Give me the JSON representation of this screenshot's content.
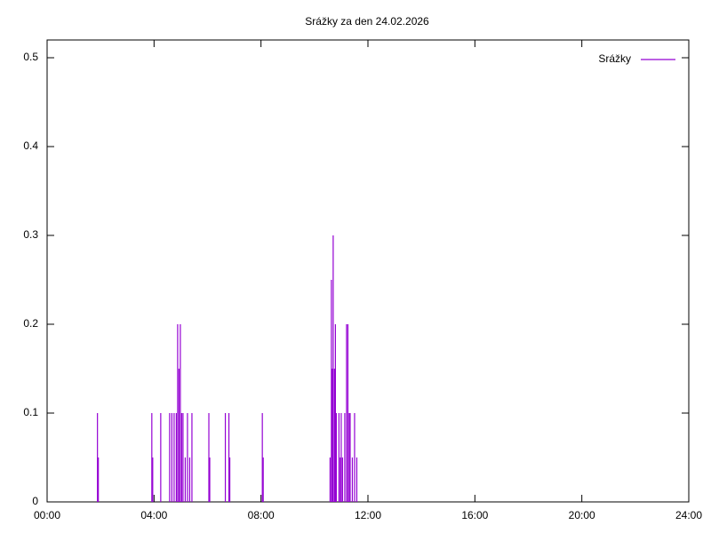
{
  "chart_data": {
    "type": "impulses",
    "title": "Srážky za den 24.02.2026",
    "x": [
      "01:53",
      "01:55",
      "03:55",
      "03:57",
      "04:15",
      "04:35",
      "04:40",
      "04:45",
      "04:50",
      "04:53",
      "04:56",
      "04:59",
      "05:02",
      "05:05",
      "05:10",
      "05:15",
      "05:20",
      "05:25",
      "06:03",
      "06:05",
      "06:40",
      "06:48",
      "06:50",
      "08:03",
      "08:05",
      "10:35",
      "10:38",
      "10:40",
      "10:42",
      "10:45",
      "10:47",
      "10:49",
      "10:55",
      "10:58",
      "11:00",
      "11:03",
      "11:08",
      "11:12",
      "11:15",
      "11:18",
      "11:20",
      "11:25",
      "11:30",
      "11:35"
    ],
    "series": [
      {
        "name": "Srážky",
        "color": "#9400d3",
        "values": [
          0.1,
          0.05,
          0.1,
          0.05,
          0.1,
          0.1,
          0.1,
          0.1,
          0.1,
          0.2,
          0.15,
          0.2,
          0.1,
          0.1,
          0.05,
          0.1,
          0.05,
          0.1,
          0.1,
          0.05,
          0.1,
          0.1,
          0.05,
          0.1,
          0.05,
          0.05,
          0.25,
          0.15,
          0.3,
          0.15,
          0.2,
          0.1,
          0.1,
          0.05,
          0.1,
          0.05,
          0.1,
          0.2,
          0.2,
          0.1,
          0.1,
          0.05,
          0.1,
          0.05
        ]
      }
    ],
    "xlim": [
      "00:00",
      "24:00"
    ],
    "xticks": [
      "00:00",
      "04:00",
      "08:00",
      "12:00",
      "16:00",
      "20:00",
      "24:00"
    ],
    "ylim": [
      0,
      0.52
    ],
    "yticks": [
      0,
      0.1,
      0.2,
      0.3,
      0.4,
      0.5
    ],
    "legend": "top-right"
  }
}
